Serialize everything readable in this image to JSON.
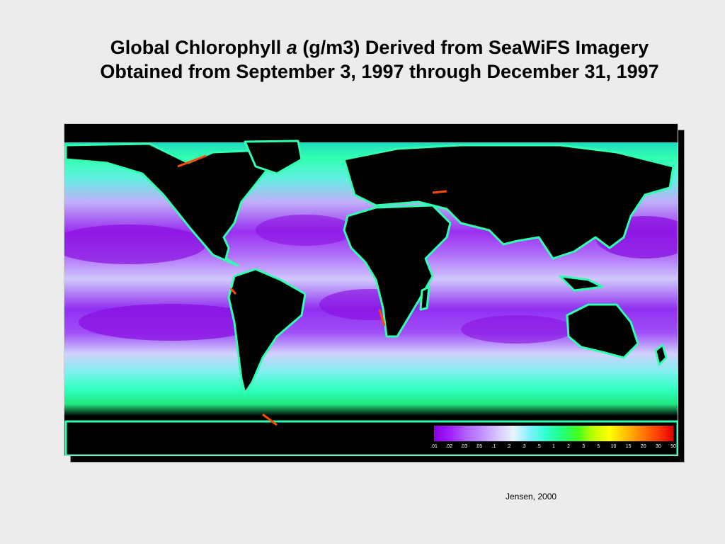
{
  "title": {
    "line1_before": "Global Chlorophyll ",
    "line1_italic": "a",
    "line1_after": " (g/m3) Derived from SeaWiFS Imagery",
    "line2": "Obtained from September 3, 1997 through December 31, 1997"
  },
  "color_scale": {
    "tick_labels": [
      ".01",
      ".02",
      ".03",
      ".05",
      ".1",
      ".2",
      ".3",
      ".5",
      "1",
      "2",
      "3",
      "5",
      "10",
      "15",
      "20",
      "30",
      "50"
    ],
    "colors": [
      "#8a00e0",
      "#a020ff",
      "#b060ff",
      "#c090ff",
      "#d8c8ff",
      "#e8f4ff",
      "#80f0ff",
      "#30ffd0",
      "#20ff80",
      "#40ff20",
      "#c0ff00",
      "#ffff00",
      "#ffc000",
      "#ff8000",
      "#ff4000",
      "#e00000"
    ]
  },
  "map": {
    "land_color": "#000000",
    "ocean_low": "#8a10e0",
    "ocean_mid": "#c8b8f8",
    "ocean_high": "#20ffa0",
    "coastal_high": "#ff4000"
  },
  "credit": "Jensen, 2000"
}
